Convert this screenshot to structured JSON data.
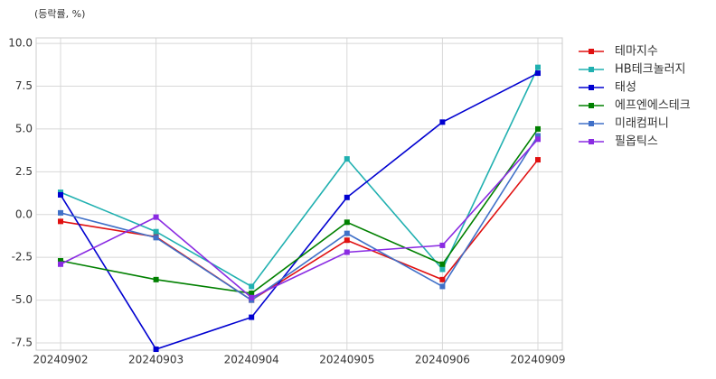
{
  "chart_data": {
    "type": "line",
    "subtitle": "(등락률, %)",
    "categories": [
      "20240902",
      "20240903",
      "20240904",
      "20240905",
      "20240906",
      "20240909"
    ],
    "series": [
      {
        "name": "테마지수",
        "color": "#e01010",
        "values": [
          -0.4,
          -1.3,
          -5.0,
          -1.5,
          -3.8,
          3.2
        ]
      },
      {
        "name": "HB테크놀러지",
        "color": "#20b0b0",
        "values": [
          1.3,
          -1.0,
          -4.2,
          3.25,
          -3.2,
          8.6
        ]
      },
      {
        "name": "태성",
        "color": "#0000d0",
        "values": [
          1.15,
          -7.87,
          -6.0,
          1.0,
          5.4,
          8.26
        ]
      },
      {
        "name": "에프엔에스테크",
        "color": "#008000",
        "values": [
          -2.7,
          -3.8,
          -4.6,
          -0.45,
          -2.9,
          5.0
        ]
      },
      {
        "name": "미래컴퍼니",
        "color": "#4070c8",
        "values": [
          0.1,
          -1.35,
          -5.0,
          -1.1,
          -4.2,
          4.6
        ]
      },
      {
        "name": "필옵틱스",
        "color": "#8a2be2",
        "values": [
          -2.9,
          -0.15,
          -4.85,
          -2.2,
          -1.8,
          4.4
        ]
      }
    ],
    "ylim": [
      -7.92,
      10.32
    ],
    "yticks": [
      {
        "value": -7.5,
        "label": "-7.5"
      },
      {
        "value": -5,
        "label": "-5.0"
      },
      {
        "value": -2.5,
        "label": "-2.5"
      },
      {
        "value": 0,
        "label": "0.0"
      },
      {
        "value": 2.5,
        "label": "2.5"
      },
      {
        "value": 5,
        "label": "5.0"
      },
      {
        "value": 7.5,
        "label": "7.5"
      },
      {
        "value": 10,
        "label": "10.0"
      }
    ],
    "grid": true,
    "legend": "right"
  }
}
